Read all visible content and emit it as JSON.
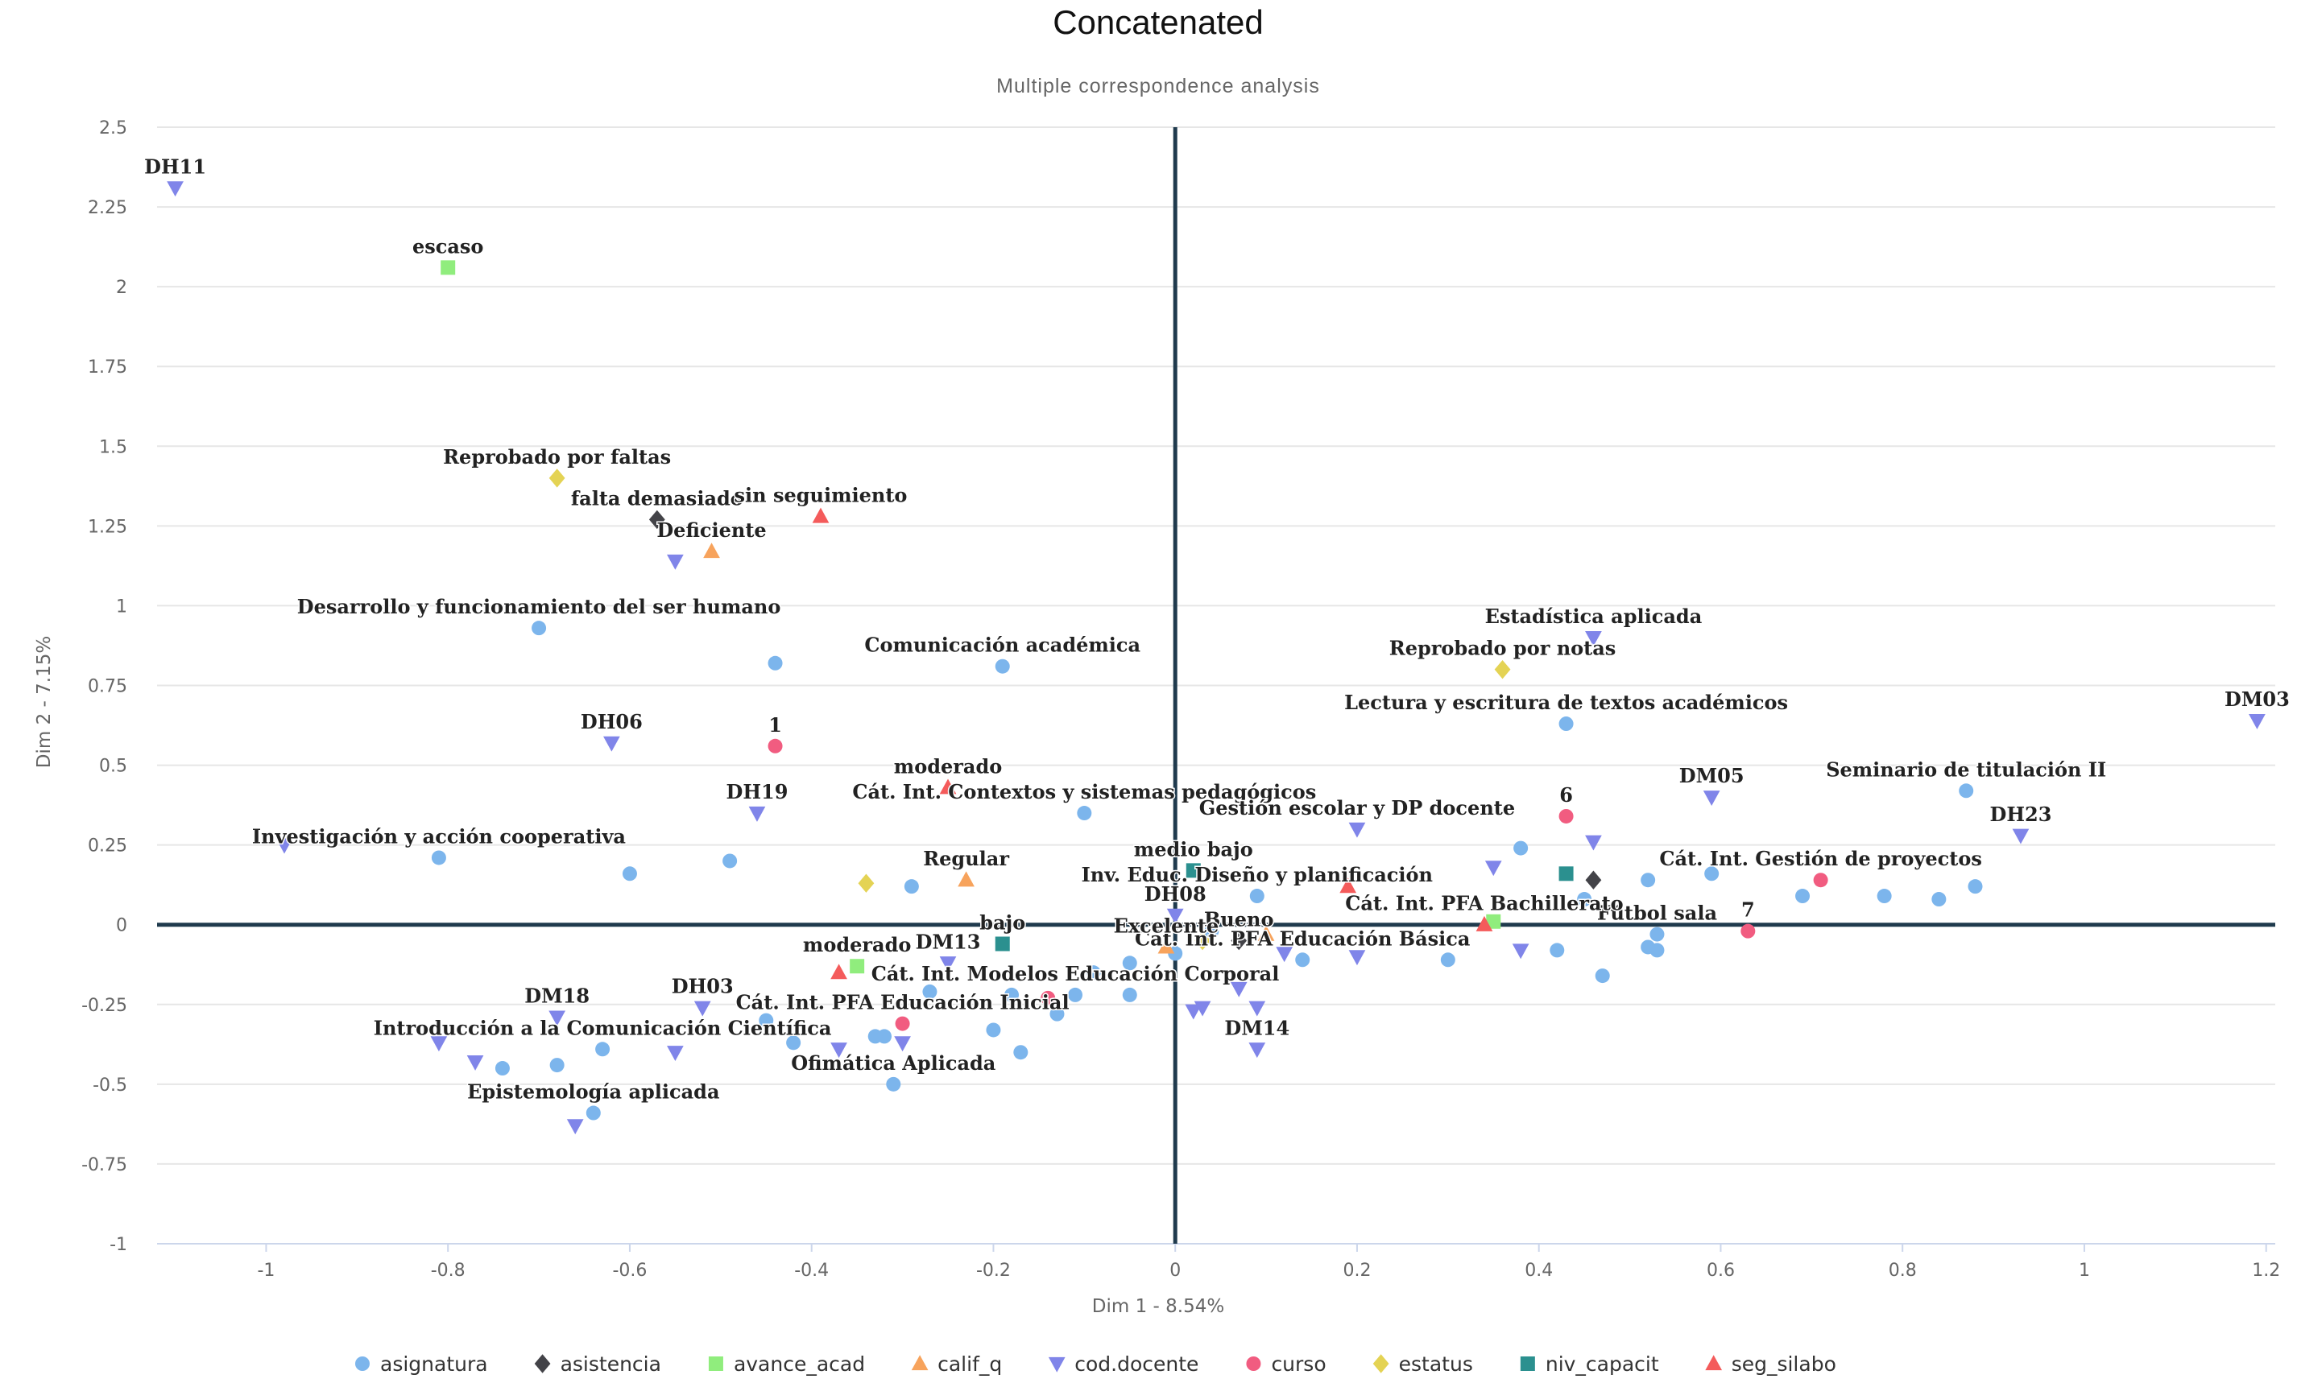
{
  "chart_data": {
    "type": "scatter",
    "title": "Concatenated",
    "subtitle": "Multiple correspondence analysis",
    "xlabel": "Dim 1 - 8.54%",
    "ylabel": "Dim 2 - 7.15%",
    "xlim": [
      -1.12,
      1.21
    ],
    "ylim": [
      -1,
      2.5
    ],
    "xticks": [
      "-1",
      "-0.8",
      "-0.6",
      "-0.4",
      "-0.2",
      "0",
      "0.2",
      "0.4",
      "0.6",
      "0.8",
      "1",
      "1.2"
    ],
    "yticks": [
      "2.5",
      "2.25",
      "2",
      "1.75",
      "1.5",
      "1.25",
      "1",
      "0.75",
      "0.5",
      "0.25",
      "0",
      "-0.25",
      "-0.5",
      "-0.75",
      "-1"
    ],
    "grid": "horizontal",
    "legend_position": "bottom",
    "series": [
      {
        "name": "asignatura",
        "color": "#7cb5ec",
        "marker": "circle",
        "points": [
          {
            "x": -0.7,
            "y": 0.93,
            "label": "Desarrollo y funcionamiento del ser humano"
          },
          {
            "x": -0.44,
            "y": 0.82,
            "label": ""
          },
          {
            "x": -0.19,
            "y": 0.81,
            "label": "Comunicación académica"
          },
          {
            "x": -0.1,
            "y": 0.35,
            "label": "Cát. Int. Contextos y sistemas pedagógicos"
          },
          {
            "x": -0.81,
            "y": 0.21,
            "label": "Investigación y acción cooperativa"
          },
          {
            "x": -0.6,
            "y": 0.16,
            "label": ""
          },
          {
            "x": -0.49,
            "y": 0.2,
            "label": ""
          },
          {
            "x": -0.29,
            "y": 0.12,
            "label": ""
          },
          {
            "x": 0.43,
            "y": 0.63,
            "label": "Lectura y escritura de textos académicos"
          },
          {
            "x": 0.87,
            "y": 0.42,
            "label": "Seminario de titulación II"
          },
          {
            "x": 0.38,
            "y": 0.24,
            "label": ""
          },
          {
            "x": 0.52,
            "y": 0.14,
            "label": ""
          },
          {
            "x": 0.59,
            "y": 0.16,
            "label": ""
          },
          {
            "x": 0.69,
            "y": 0.09,
            "label": ""
          },
          {
            "x": 0.78,
            "y": 0.09,
            "label": ""
          },
          {
            "x": 0.84,
            "y": 0.08,
            "label": ""
          },
          {
            "x": 0.88,
            "y": 0.12,
            "label": ""
          },
          {
            "x": 0.45,
            "y": 0.08,
            "label": ""
          },
          {
            "x": 0.53,
            "y": -0.03,
            "label": "Fútbol sala"
          },
          {
            "x": 0.52,
            "y": -0.07,
            "label": ""
          },
          {
            "x": 0.53,
            "y": -0.08,
            "label": ""
          },
          {
            "x": 0.47,
            "y": -0.16,
            "label": ""
          },
          {
            "x": 0.42,
            "y": -0.08,
            "label": ""
          },
          {
            "x": 0.3,
            "y": -0.11,
            "label": ""
          },
          {
            "x": 0.14,
            "y": -0.11,
            "label": "Cát. Int. PFA Educación Básica"
          },
          {
            "x": 0.09,
            "y": 0.09,
            "label": "Inv. Educ. Diseño y planificación"
          },
          {
            "x": 0.04,
            "y": -0.02,
            "label": ""
          },
          {
            "x": 0.0,
            "y": -0.09,
            "label": ""
          },
          {
            "x": -0.05,
            "y": -0.12,
            "label": ""
          },
          {
            "x": -0.05,
            "y": -0.22,
            "label": ""
          },
          {
            "x": -0.09,
            "y": -0.15,
            "label": ""
          },
          {
            "x": -0.11,
            "y": -0.22,
            "label": "Cát. Int. Modelos Educación Corporal"
          },
          {
            "x": -0.13,
            "y": -0.28,
            "label": ""
          },
          {
            "x": -0.18,
            "y": -0.22,
            "label": ""
          },
          {
            "x": -0.2,
            "y": -0.33,
            "label": ""
          },
          {
            "x": -0.17,
            "y": -0.4,
            "label": ""
          },
          {
            "x": -0.27,
            "y": -0.21,
            "label": ""
          },
          {
            "x": -0.32,
            "y": -0.35,
            "label": ""
          },
          {
            "x": -0.33,
            "y": -0.35,
            "label": ""
          },
          {
            "x": -0.31,
            "y": -0.5,
            "label": "Ofimática Aplicada"
          },
          {
            "x": -0.42,
            "y": -0.37,
            "label": ""
          },
          {
            "x": -0.45,
            "y": -0.3,
            "label": ""
          },
          {
            "x": -0.63,
            "y": -0.39,
            "label": "Introducción a la Comunicación Científica"
          },
          {
            "x": -0.68,
            "y": -0.44,
            "label": ""
          },
          {
            "x": -0.74,
            "y": -0.45,
            "label": ""
          },
          {
            "x": -0.64,
            "y": -0.59,
            "label": "Epistemología aplicada"
          }
        ]
      },
      {
        "name": "asistencia",
        "color": "#434348",
        "marker": "diamond",
        "points": [
          {
            "x": -0.57,
            "y": 1.27,
            "label": "falta demasiado"
          },
          {
            "x": 0.07,
            "y": -0.05,
            "label": "Bueno"
          },
          {
            "x": 0.46,
            "y": 0.14,
            "label": ""
          }
        ]
      },
      {
        "name": "avance_acad",
        "color": "#90ed7d",
        "marker": "square",
        "points": [
          {
            "x": -0.8,
            "y": 2.06,
            "label": "escaso"
          },
          {
            "x": -0.35,
            "y": -0.13,
            "label": "moderado"
          },
          {
            "x": 0.35,
            "y": 0.01,
            "label": ""
          }
        ]
      },
      {
        "name": "calif_q",
        "color": "#f7a35c",
        "marker": "triangle",
        "points": [
          {
            "x": -0.51,
            "y": 1.17,
            "label": "Deficiente"
          },
          {
            "x": -0.23,
            "y": 0.14,
            "label": "Regular"
          },
          {
            "x": -0.01,
            "y": -0.07,
            "label": "Excelente"
          },
          {
            "x": 0.1,
            "y": -0.03,
            "label": ""
          }
        ]
      },
      {
        "name": "cod.docente",
        "color": "#8085e9",
        "marker": "triangle-down",
        "points": [
          {
            "x": -1.1,
            "y": 2.31,
            "label": "DH11"
          },
          {
            "x": -0.55,
            "y": 1.14,
            "label": ""
          },
          {
            "x": -0.62,
            "y": 0.57,
            "label": "DH06"
          },
          {
            "x": -0.46,
            "y": 0.35,
            "label": "DH19"
          },
          {
            "x": -0.98,
            "y": 0.25,
            "label": ""
          },
          {
            "x": -0.25,
            "y": -0.12,
            "label": "DM13"
          },
          {
            "x": -0.52,
            "y": -0.26,
            "label": "DH03"
          },
          {
            "x": -0.68,
            "y": -0.29,
            "label": "DM18"
          },
          {
            "x": -0.81,
            "y": -0.37,
            "label": ""
          },
          {
            "x": -0.77,
            "y": -0.43,
            "label": ""
          },
          {
            "x": -0.55,
            "y": -0.4,
            "label": ""
          },
          {
            "x": -0.37,
            "y": -0.39,
            "label": ""
          },
          {
            "x": -0.3,
            "y": -0.37,
            "label": ""
          },
          {
            "x": -0.66,
            "y": -0.63,
            "label": ""
          },
          {
            "x": 0.0,
            "y": 0.03,
            "label": "DH08"
          },
          {
            "x": 0.02,
            "y": -0.27,
            "label": ""
          },
          {
            "x": 0.03,
            "y": -0.26,
            "label": ""
          },
          {
            "x": 0.07,
            "y": -0.2,
            "label": ""
          },
          {
            "x": 0.09,
            "y": -0.26,
            "label": ""
          },
          {
            "x": 0.09,
            "y": -0.39,
            "label": "DM14"
          },
          {
            "x": 0.12,
            "y": -0.09,
            "label": ""
          },
          {
            "x": 0.2,
            "y": 0.3,
            "label": "Gestión escolar y DP docente"
          },
          {
            "x": 0.2,
            "y": -0.1,
            "label": ""
          },
          {
            "x": 0.35,
            "y": 0.18,
            "label": ""
          },
          {
            "x": 0.38,
            "y": -0.08,
            "label": ""
          },
          {
            "x": 0.46,
            "y": 0.26,
            "label": ""
          },
          {
            "x": 0.46,
            "y": 0.9,
            "label": "Estadística aplicada"
          },
          {
            "x": 0.59,
            "y": 0.4,
            "label": "DM05"
          },
          {
            "x": 0.93,
            "y": 0.28,
            "label": "DH23"
          },
          {
            "x": 1.19,
            "y": 0.64,
            "label": "DM03"
          }
        ]
      },
      {
        "name": "curso",
        "color": "#f15c80",
        "marker": "circle",
        "points": [
          {
            "x": -0.44,
            "y": 0.56,
            "label": "1"
          },
          {
            "x": -0.3,
            "y": -0.31,
            "label": "Cát. Int. PFA Educación Inicial"
          },
          {
            "x": -0.14,
            "y": -0.23,
            "label": ""
          },
          {
            "x": 0.43,
            "y": 0.34,
            "label": "6"
          },
          {
            "x": 0.63,
            "y": -0.02,
            "label": "7"
          },
          {
            "x": 0.71,
            "y": 0.14,
            "label": "Cát. Int. Gestión de proyectos"
          }
        ]
      },
      {
        "name": "estatus",
        "color": "#e4d354",
        "marker": "diamond",
        "points": [
          {
            "x": -0.68,
            "y": 1.4,
            "label": "Reprobado por faltas"
          },
          {
            "x": -0.34,
            "y": 0.13,
            "label": ""
          },
          {
            "x": 0.03,
            "y": -0.05,
            "label": ""
          },
          {
            "x": 0.36,
            "y": 0.8,
            "label": "Reprobado por notas"
          }
        ]
      },
      {
        "name": "niv_capacit",
        "color": "#2b908f",
        "marker": "square",
        "points": [
          {
            "x": -0.19,
            "y": -0.06,
            "label": "bajo"
          },
          {
            "x": 0.02,
            "y": 0.17,
            "label": "medio bajo"
          },
          {
            "x": 0.43,
            "y": 0.16,
            "label": ""
          }
        ]
      },
      {
        "name": "seg_silabo",
        "color": "#f45b5b",
        "marker": "triangle",
        "points": [
          {
            "x": -0.39,
            "y": 1.28,
            "label": "sin seguimiento"
          },
          {
            "x": -0.25,
            "y": 0.43,
            "label": "moderado"
          },
          {
            "x": -0.37,
            "y": -0.15,
            "label": ""
          },
          {
            "x": 0.19,
            "y": 0.12,
            "label": ""
          },
          {
            "x": 0.34,
            "y": 0.0,
            "label": "Cát. Int. PFA Bachillerato"
          }
        ]
      }
    ]
  }
}
